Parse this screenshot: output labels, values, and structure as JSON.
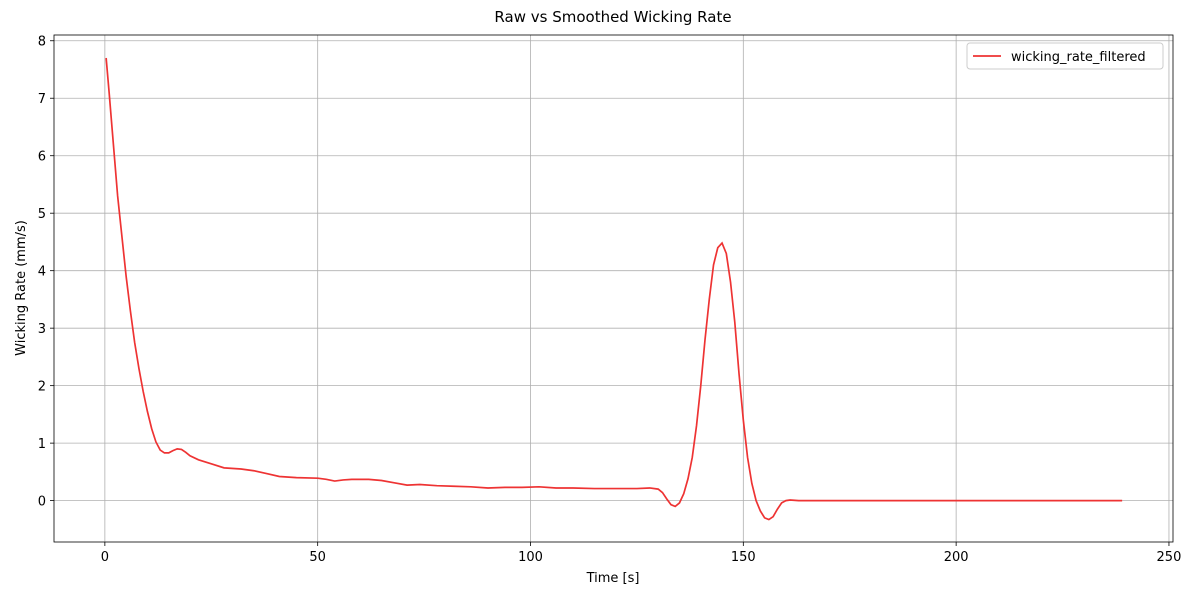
{
  "chart_data": {
    "type": "line",
    "title": "Raw vs Smoothed Wicking Rate",
    "x_label": "Time [s]",
    "y_label": "Wicking Rate (mm/s)",
    "x": [
      0.3,
      1,
      2,
      3,
      4,
      5,
      6,
      7,
      8,
      9,
      10,
      11,
      12,
      13,
      14,
      15,
      16,
      17,
      18,
      19,
      20,
      22,
      25,
      28,
      32,
      35,
      38,
      41,
      45,
      50,
      52,
      54,
      56,
      58,
      62,
      65,
      68,
      71,
      74,
      78,
      82,
      86,
      90,
      94,
      98,
      102,
      106,
      110,
      115,
      120,
      125,
      128,
      130,
      131,
      132,
      133,
      134,
      135,
      136,
      137,
      138,
      139,
      140,
      141,
      142,
      143,
      144,
      145,
      146,
      147,
      148,
      149,
      150,
      151,
      152,
      153,
      154,
      155,
      156,
      157,
      158,
      159,
      160,
      161,
      163,
      239
    ],
    "series": [
      {
        "name": "wicking_rate_filtered",
        "color": "#ee3333",
        "values": [
          7.7,
          7.1,
          6.2,
          5.3,
          4.6,
          3.9,
          3.3,
          2.75,
          2.3,
          1.9,
          1.55,
          1.25,
          1.02,
          0.88,
          0.83,
          0.83,
          0.87,
          0.9,
          0.89,
          0.84,
          0.78,
          0.71,
          0.64,
          0.57,
          0.55,
          0.52,
          0.47,
          0.42,
          0.4,
          0.39,
          0.37,
          0.34,
          0.36,
          0.37,
          0.37,
          0.35,
          0.31,
          0.27,
          0.28,
          0.26,
          0.25,
          0.24,
          0.22,
          0.23,
          0.23,
          0.24,
          0.22,
          0.22,
          0.21,
          0.21,
          0.21,
          0.22,
          0.2,
          0.14,
          0.03,
          -0.07,
          -0.1,
          -0.04,
          0.12,
          0.38,
          0.75,
          1.3,
          2.0,
          2.8,
          3.5,
          4.1,
          4.4,
          4.48,
          4.3,
          3.8,
          3.1,
          2.2,
          1.4,
          0.75,
          0.3,
          0.0,
          -0.18,
          -0.3,
          -0.33,
          -0.28,
          -0.15,
          -0.04,
          0.0,
          0.01,
          0.0,
          0.0
        ]
      }
    ],
    "xlim": [
      -11.95,
      250.95
    ],
    "xticks": [
      0,
      50,
      100,
      150,
      200,
      250
    ],
    "ylim": [
      -0.72,
      8.1
    ],
    "yticks": [
      0,
      1,
      2,
      3,
      4,
      5,
      6,
      7,
      8
    ],
    "grid": true,
    "legend": "upper right"
  }
}
